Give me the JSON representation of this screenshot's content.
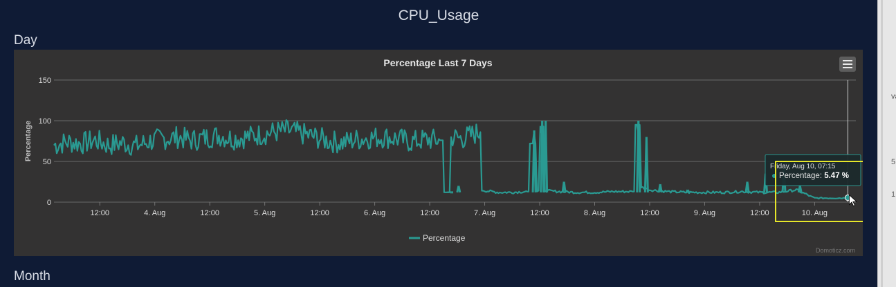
{
  "page": {
    "title": "CPU_Usage"
  },
  "sections": {
    "day": "Day",
    "month": "Month"
  },
  "colors": {
    "series": "#2a9a92",
    "background": "#333232",
    "page": "#0f1b35",
    "highlight": "#e6e62a"
  },
  "chart_data": {
    "type": "line",
    "title": "Percentage Last 7 Days",
    "ylabel": "Percentage",
    "xlabel": "",
    "ylim": [
      0,
      150
    ],
    "yticks": [
      0,
      50,
      100,
      150
    ],
    "xlim": [
      "2018-08-03 02:00",
      "2018-08-10 09:00"
    ],
    "xticks": [
      {
        "t": "2018-08-03 12:00",
        "label": "12:00"
      },
      {
        "t": "2018-08-04 00:00",
        "label": "4. Aug"
      },
      {
        "t": "2018-08-04 12:00",
        "label": "12:00"
      },
      {
        "t": "2018-08-05 00:00",
        "label": "5. Aug"
      },
      {
        "t": "2018-08-05 12:00",
        "label": "12:00"
      },
      {
        "t": "2018-08-06 00:00",
        "label": "6. Aug"
      },
      {
        "t": "2018-08-06 12:00",
        "label": "12:00"
      },
      {
        "t": "2018-08-07 00:00",
        "label": "7. Aug"
      },
      {
        "t": "2018-08-07 12:00",
        "label": "12:00"
      },
      {
        "t": "2018-08-08 00:00",
        "label": "8. Aug"
      },
      {
        "t": "2018-08-08 12:00",
        "label": "12:00"
      },
      {
        "t": "2018-08-09 00:00",
        "label": "9. Aug"
      },
      {
        "t": "2018-08-09 12:00",
        "label": "12:00"
      },
      {
        "t": "2018-08-10 00:00",
        "label": "10. Aug"
      }
    ],
    "legend": {
      "position": "bottom-center"
    },
    "grid": true,
    "series": [
      {
        "name": "Percentage",
        "points": [
          [
            "2018-08-03 02:00",
            70
          ],
          [
            "2018-08-03 05:00",
            74
          ],
          [
            "2018-08-03 08:00",
            72
          ],
          [
            "2018-08-03 11:00",
            76
          ],
          [
            "2018-08-03 14:00",
            70
          ],
          [
            "2018-08-03 17:00",
            73
          ],
          [
            "2018-08-03 20:00",
            69
          ],
          [
            "2018-08-03 23:00",
            75
          ],
          [
            "2018-08-04 02:00",
            78
          ],
          [
            "2018-08-04 05:00",
            80
          ],
          [
            "2018-08-04 08:00",
            76
          ],
          [
            "2018-08-04 11:00",
            79
          ],
          [
            "2018-08-04 14:00",
            82
          ],
          [
            "2018-08-04 17:00",
            78
          ],
          [
            "2018-08-04 20:00",
            80
          ],
          [
            "2018-08-04 23:00",
            83
          ],
          [
            "2018-08-05 02:00",
            86
          ],
          [
            "2018-08-05 05:00",
            88
          ],
          [
            "2018-08-05 08:00",
            84
          ],
          [
            "2018-08-05 11:00",
            80
          ],
          [
            "2018-08-05 14:00",
            75
          ],
          [
            "2018-08-05 17:00",
            73
          ],
          [
            "2018-08-05 20:00",
            77
          ],
          [
            "2018-08-05 23:00",
            79
          ],
          [
            "2018-08-06 02:00",
            80
          ],
          [
            "2018-08-06 05:00",
            78
          ],
          [
            "2018-08-06 08:00",
            74
          ],
          [
            "2018-08-06 11:00",
            77
          ],
          [
            "2018-08-06 14:00",
            76
          ],
          [
            "2018-08-06 16:00",
            12
          ],
          [
            "2018-08-06 17:00",
            80
          ],
          [
            "2018-08-06 19:00",
            78
          ],
          [
            "2018-08-06 21:00",
            82
          ],
          [
            "2018-08-06 22:45",
            86
          ],
          [
            "2018-08-07 00:00",
            14
          ],
          [
            "2018-08-07 03:00",
            12
          ],
          [
            "2018-08-07 06:00",
            12
          ],
          [
            "2018-08-07 09:00",
            13
          ],
          [
            "2018-08-07 10:45",
            72
          ],
          [
            "2018-08-07 11:45",
            13
          ],
          [
            "2018-08-07 12:30",
            93
          ],
          [
            "2018-08-07 13:30",
            14
          ],
          [
            "2018-08-07 16:00",
            13
          ],
          [
            "2018-08-07 20:00",
            12
          ],
          [
            "2018-08-08 00:00",
            12
          ],
          [
            "2018-08-08 04:00",
            13
          ],
          [
            "2018-08-08 08:00",
            13
          ],
          [
            "2018-08-08 09:30",
            95
          ],
          [
            "2018-08-08 10:30",
            18
          ],
          [
            "2018-08-08 12:00",
            15
          ],
          [
            "2018-08-08 16:00",
            13
          ],
          [
            "2018-08-08 20:00",
            12
          ],
          [
            "2018-08-09 00:00",
            12
          ],
          [
            "2018-08-09 04:00",
            12
          ],
          [
            "2018-08-09 08:00",
            13
          ],
          [
            "2018-08-09 12:00",
            12
          ],
          [
            "2018-08-09 16:00",
            12
          ],
          [
            "2018-08-09 20:00",
            15
          ],
          [
            "2018-08-10 00:00",
            5
          ],
          [
            "2018-08-10 03:00",
            5
          ],
          [
            "2018-08-10 06:00",
            5
          ],
          [
            "2018-08-10 07:15",
            5.47
          ]
        ],
        "spikes": [
          [
            "2018-08-06 16:30",
            12
          ],
          [
            "2018-08-06 18:00",
            20
          ],
          [
            "2018-08-07 10:30",
            88
          ],
          [
            "2018-08-07 12:15",
            100
          ],
          [
            "2018-08-07 13:00",
            100
          ],
          [
            "2018-08-07 17:00",
            25
          ],
          [
            "2018-08-08 09:15",
            100
          ],
          [
            "2018-08-08 11:00",
            80
          ],
          [
            "2018-08-08 14:00",
            22
          ],
          [
            "2018-08-08 20:00",
            15
          ],
          [
            "2018-08-09 09:00",
            25
          ],
          [
            "2018-08-09 13:00",
            35
          ],
          [
            "2018-08-09 17:00",
            42
          ],
          [
            "2018-08-09 20:30",
            20
          ]
        ]
      }
    ],
    "tooltip": {
      "time": "Friday, Aug 10, 07:15",
      "series_label": "Percentage:",
      "value": "5.47 %"
    },
    "credits": "Domoticz.com"
  }
}
